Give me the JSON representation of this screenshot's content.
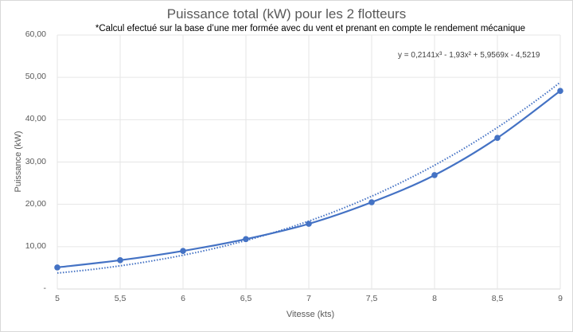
{
  "chart_data": {
    "type": "line",
    "title": "Puissance total (kW) pour les 2 flotteurs",
    "subtitle": "*Calcul efectué sur la base d’une mer formée avec du vent et prenant en compte le rendement mécanique",
    "xlabel": "Vitesse (kts)",
    "ylabel": "Puissance (kW)",
    "x": [
      5,
      5.5,
      6,
      6.5,
      7,
      7.5,
      8,
      8.5,
      9
    ],
    "x_tick_labels": [
      "5",
      "5,5",
      "6",
      "6,5",
      "7",
      "7,5",
      "8",
      "8,5",
      "9"
    ],
    "y_tick_labels": [
      "-",
      "10,00",
      "20,00",
      "30,00",
      "40,00",
      "50,00",
      "60,00"
    ],
    "ylim": [
      0,
      60
    ],
    "xlim": [
      5,
      9
    ],
    "grid": true,
    "legend": "none",
    "series": [
      {
        "name": "Puissance",
        "style": "solid line with markers",
        "color": "#4472c4",
        "values": [
          5.1,
          6.8,
          9.0,
          11.8,
          15.4,
          20.5,
          26.9,
          35.7,
          46.8
        ]
      },
      {
        "name": "Courbe de tendance polynomiale",
        "style": "dotted",
        "color": "#4472c4",
        "equation": "y = 0,2141x³ - 1,93x² + 5,9569x - 4,5219",
        "coefficients": [
          0.2141,
          -1.93,
          5.9569,
          -4.5219
        ]
      }
    ],
    "annotations": [
      "y = 0,2141x³ - 1,93x² + 5,9569x - 4,5219"
    ]
  }
}
